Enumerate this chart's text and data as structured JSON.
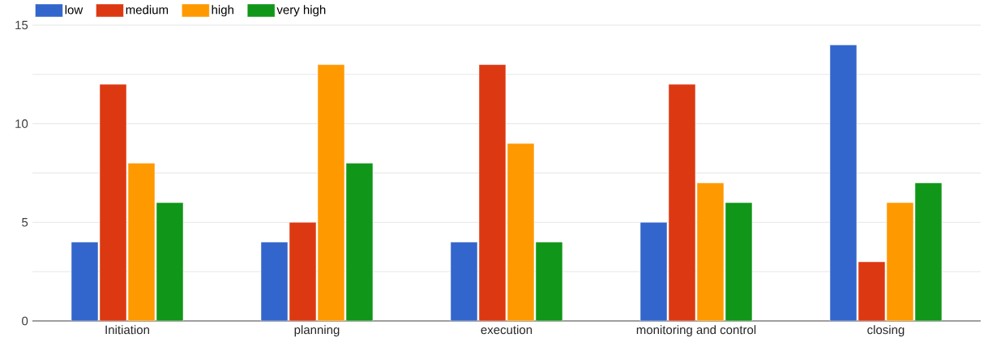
{
  "chart_data": {
    "type": "bar",
    "categories": [
      "Initiation",
      "planning",
      "execution",
      "monitoring and control",
      "closing"
    ],
    "series": [
      {
        "name": "low",
        "color": "#3366cc",
        "values": [
          4,
          4,
          4,
          5,
          14
        ]
      },
      {
        "name": "medium",
        "color": "#dc3912",
        "values": [
          12,
          5,
          13,
          12,
          3
        ]
      },
      {
        "name": "high",
        "color": "#ff9900",
        "values": [
          8,
          13,
          9,
          7,
          6
        ]
      },
      {
        "name": "very high",
        "color": "#109618",
        "values": [
          6,
          8,
          4,
          6,
          7
        ]
      }
    ],
    "ylim": [
      0,
      15
    ],
    "yticks": [
      0,
      {
        "value": 2.5,
        "label": null
      },
      5,
      {
        "value": 7.5,
        "label": null
      },
      10,
      {
        "value": 12.5,
        "label": null
      },
      15
    ],
    "grid": "y",
    "legend": "top left"
  }
}
